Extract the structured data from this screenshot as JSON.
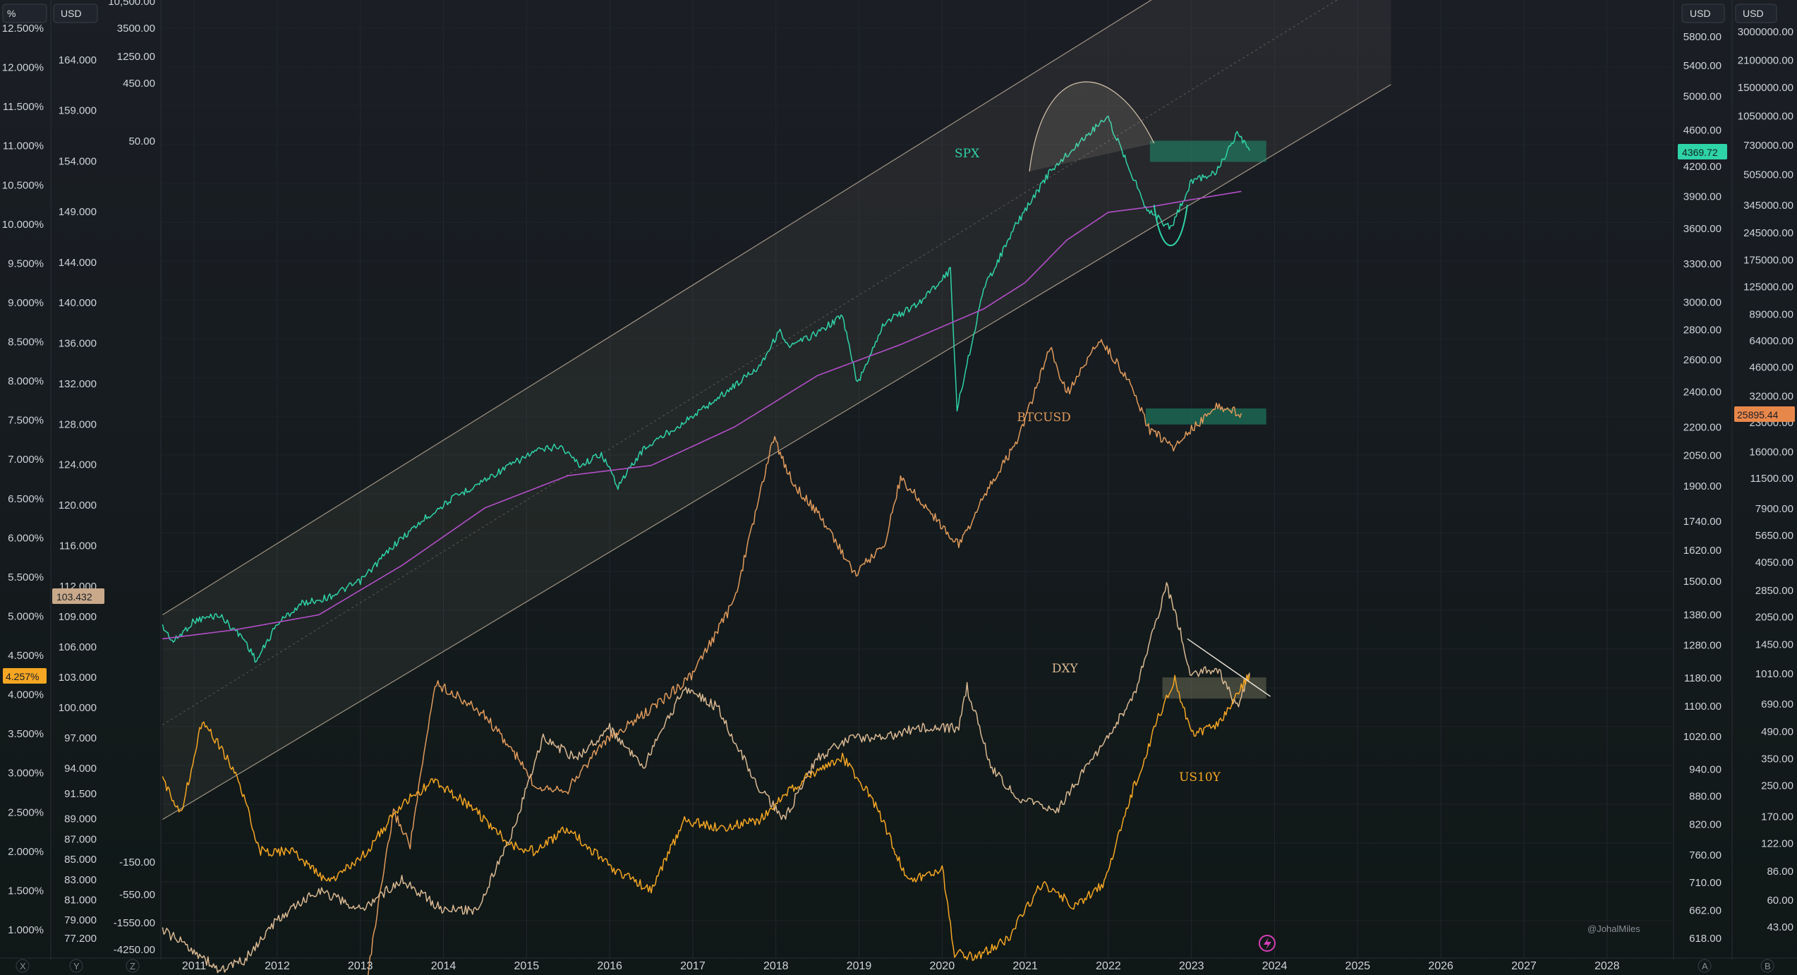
{
  "chart_data": {
    "type": "line",
    "xlim": [
      2010.6,
      2028.8
    ],
    "x_ticks": [
      "2011",
      "2012",
      "2013",
      "2014",
      "2015",
      "2016",
      "2017",
      "2018",
      "2019",
      "2020",
      "2021",
      "2022",
      "2023",
      "2024",
      "2025",
      "2026",
      "2027",
      "2028"
    ],
    "axes": {
      "pct": {
        "unit_label": "%",
        "ticks": [
          "12.500%",
          "12.000%",
          "11.500%",
          "11.000%",
          "10.500%",
          "10.000%",
          "9.500%",
          "9.000%",
          "8.500%",
          "8.000%",
          "7.500%",
          "7.000%",
          "6.500%",
          "6.000%",
          "5.500%",
          "5.000%",
          "4.500%",
          "4.000%",
          "3.500%",
          "3.000%",
          "2.500%",
          "2.000%",
          "1.500%",
          "1.000%"
        ]
      },
      "dxy": {
        "unit_label": "USD",
        "ticks": [
          "164.000",
          "159.000",
          "154.000",
          "149.000",
          "144.000",
          "140.000",
          "136.000",
          "132.000",
          "128.000",
          "124.000",
          "120.000",
          "116.000",
          "112.000",
          "109.000",
          "106.000",
          "103.000",
          "100.000",
          "97.000",
          "94.000",
          "91.500",
          "89.000",
          "87.000",
          "85.000",
          "83.000",
          "81.000",
          "79.000",
          "77.200"
        ]
      },
      "third": {
        "ticks": [
          "10,500.00",
          "3500.00",
          "1250.00",
          "450.00",
          "50.00",
          "-150.00",
          "-550.00",
          "-1550.00",
          "-4250.00"
        ]
      },
      "spx": {
        "unit_label": "USD",
        "ticks": [
          "5800.00",
          "5400.00",
          "5000.00",
          "4600.00",
          "4200.00",
          "3900.00",
          "3600.00",
          "3300.00",
          "3000.00",
          "2800.00",
          "2600.00",
          "2400.00",
          "2200.00",
          "2050.00",
          "1900.00",
          "1740.00",
          "1620.00",
          "1500.00",
          "1380.00",
          "1280.00",
          "1180.00",
          "1100.00",
          "1020.00",
          "940.00",
          "880.00",
          "820.00",
          "760.00",
          "710.00",
          "662.00",
          "618.00"
        ]
      },
      "btc": {
        "unit_label": "USD",
        "ticks": [
          "3000000.00",
          "2100000.00",
          "1500000.00",
          "1050000.00",
          "730000.00",
          "505000.00",
          "345000.00",
          "245000.00",
          "175000.00",
          "125000.00",
          "89000.00",
          "64000.00",
          "46000.00",
          "32000.00",
          "23000.00",
          "16000.00",
          "11500.00",
          "7900.00",
          "5650.00",
          "4050.00",
          "2850.00",
          "2050.00",
          "1450.00",
          "1010.00",
          "690.00",
          "490.00",
          "350.00",
          "250.00",
          "170.00",
          "122.00",
          "86.00",
          "60.00",
          "43.00"
        ]
      }
    },
    "badges": {
      "dxy": "103.432",
      "us10y": "4.257%",
      "spx": "4369.72",
      "btc": "25895.44"
    },
    "series": [
      {
        "name": "SPX",
        "color": "#2fd3a8",
        "x": [
          2010.62,
          2010.75,
          2011.0,
          2011.3,
          2011.6,
          2011.75,
          2012.0,
          2012.3,
          2012.6,
          2013.0,
          2013.4,
          2013.8,
          2014.1,
          2014.5,
          2014.8,
          2015.1,
          2015.4,
          2015.65,
          2015.9,
          2016.1,
          2016.4,
          2016.7,
          2017.0,
          2017.4,
          2017.8,
          2018.05,
          2018.15,
          2018.5,
          2018.8,
          2018.98,
          2019.3,
          2019.7,
          2020.1,
          2020.18,
          2020.5,
          2020.9,
          2021.3,
          2021.7,
          2021.98,
          2022.2,
          2022.45,
          2022.75,
          2023.0,
          2023.3,
          2023.55,
          2023.7
        ],
        "y": [
          1340,
          1290,
          1360,
          1380,
          1300,
          1230,
          1350,
          1420,
          1440,
          1500,
          1640,
          1760,
          1840,
          1930,
          2000,
          2070,
          2100,
          2000,
          2060,
          1900,
          2080,
          2170,
          2260,
          2400,
          2560,
          2800,
          2680,
          2780,
          2900,
          2450,
          2850,
          2980,
          3250,
          2300,
          3100,
          3650,
          4150,
          4500,
          4760,
          4300,
          3800,
          3600,
          4050,
          4150,
          4550,
          4369.72
        ]
      },
      {
        "name": "",
        "color": "#b34fc9",
        "x": [
          2010.62,
          2011.5,
          2012.5,
          2013.5,
          2014.5,
          2015.5,
          2016.5,
          2017.5,
          2018.5,
          2019.5,
          2020.5,
          2021.0,
          2021.5,
          2022.0,
          2022.5,
          2023.0,
          2023.6
        ],
        "y": [
          1300,
          1330,
          1380,
          1560,
          1800,
          1950,
          2000,
          2200,
          2500,
          2700,
          2950,
          3150,
          3500,
          3750,
          3800,
          3870,
          3950
        ]
      },
      {
        "name": "BTCUSD",
        "color": "#e09a5c",
        "x": [
          2013.0,
          2013.2,
          2013.4,
          2013.6,
          2013.9,
          2014.1,
          2014.5,
          2014.9,
          2015.1,
          2015.5,
          2015.9,
          2016.5,
          2017.0,
          2017.5,
          2017.97,
          2018.2,
          2018.6,
          2018.95,
          2019.3,
          2019.5,
          2019.9,
          2020.2,
          2020.6,
          2020.9,
          2021.3,
          2021.5,
          2021.9,
          2022.2,
          2022.5,
          2022.8,
          2023.0,
          2023.3,
          2023.6
        ],
        "y": [
          13,
          50,
          180,
          120,
          900,
          800,
          600,
          350,
          250,
          240,
          420,
          650,
          1000,
          2500,
          19000,
          11000,
          6500,
          3500,
          5000,
          11500,
          7200,
          5000,
          11000,
          18000,
          58000,
          33000,
          65000,
          42000,
          21000,
          17000,
          21000,
          28000,
          25895.44
        ]
      },
      {
        "name": "DXY",
        "color": "#d9b892",
        "x": [
          2010.62,
          2011.0,
          2011.3,
          2011.6,
          2012.0,
          2012.5,
          2013.0,
          2013.5,
          2014.0,
          2014.4,
          2014.8,
          2015.2,
          2015.6,
          2016.0,
          2016.4,
          2016.9,
          2017.3,
          2017.8,
          2018.1,
          2018.5,
          2018.9,
          2019.3,
          2019.7,
          2020.2,
          2020.3,
          2020.6,
          2020.9,
          2021.4,
          2021.9,
          2022.3,
          2022.7,
          2022.85,
          2023.0,
          2023.3,
          2023.55,
          2023.7
        ],
        "y": [
          78,
          76,
          74,
          75,
          79,
          82,
          80,
          83,
          80,
          80,
          87,
          97,
          95,
          98,
          94,
          102,
          100,
          92,
          89,
          95,
          97,
          97,
          98,
          98,
          102,
          94,
          91,
          90,
          96,
          101,
          112,
          108,
          103,
          104,
          100,
          103.432
        ]
      },
      {
        "name": "US10Y",
        "color": "#f5a623",
        "x": [
          2010.62,
          2010.85,
          2011.1,
          2011.5,
          2011.8,
          2012.2,
          2012.6,
          2013.0,
          2013.5,
          2013.9,
          2014.3,
          2014.8,
          2015.1,
          2015.5,
          2016.0,
          2016.5,
          2016.9,
          2017.3,
          2017.8,
          2018.3,
          2018.8,
          2019.2,
          2019.6,
          2020.0,
          2020.15,
          2020.4,
          2020.8,
          2021.2,
          2021.6,
          2021.95,
          2022.3,
          2022.6,
          2022.8,
          2023.0,
          2023.3,
          2023.55,
          2023.7
        ],
        "y": [
          2.9,
          2.5,
          3.7,
          3.0,
          2.0,
          2.0,
          1.6,
          1.9,
          2.6,
          2.9,
          2.6,
          2.1,
          2.0,
          2.3,
          1.8,
          1.5,
          2.4,
          2.3,
          2.4,
          2.9,
          3.2,
          2.6,
          1.6,
          1.8,
          0.7,
          0.65,
          0.9,
          1.6,
          1.3,
          1.6,
          2.8,
          3.7,
          4.2,
          3.5,
          3.6,
          4.0,
          4.257
        ]
      }
    ],
    "channel": {
      "x": [
        2010.62,
        2025.4
      ],
      "upper": [
        1380,
        9200
      ],
      "mid": [
        1050,
        6900
      ],
      "lower": [
        830,
        5150
      ]
    },
    "zones": [
      {
        "series": "SPX",
        "x": [
          2022.5,
          2023.9
        ],
        "y": [
          4250,
          4480
        ]
      },
      {
        "series": "BTCUSD",
        "x": [
          2022.45,
          2023.9
        ],
        "y": [
          22500,
          27500
        ]
      },
      {
        "series": "US10Y",
        "x": [
          2022.65,
          2023.9
        ],
        "y": [
          3.95,
          4.22
        ]
      }
    ],
    "dxy_trendline": {
      "x": [
        2022.95,
        2023.95
      ],
      "y": [
        106.8,
        101.1
      ]
    },
    "spx_arc": {
      "x": [
        2021.05,
        2022.55
      ],
      "peak": 5050
    },
    "spx_bowl": {
      "x": [
        2022.55,
        2022.95
      ],
      "trough": 3550
    }
  },
  "watermark": "@JohalMiles",
  "corner_labels": {
    "bl1": "X",
    "bl2": "Y",
    "bl3": "Z",
    "br1": "A",
    "br2": "B"
  }
}
